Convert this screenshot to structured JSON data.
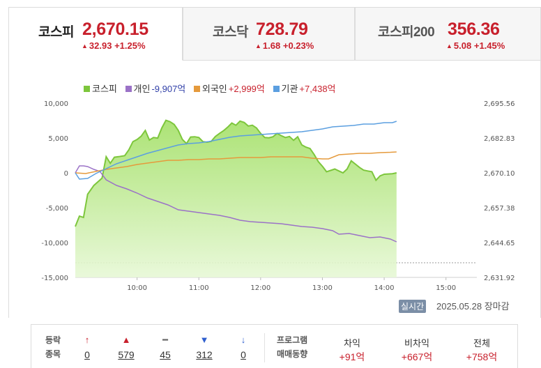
{
  "tabs": [
    {
      "name": "코스피",
      "value": "2,670.15",
      "change": "32.93",
      "pct": "+1.25%",
      "active": true
    },
    {
      "name": "코스닥",
      "value": "728.79",
      "change": "1.68",
      "pct": "+0.23%",
      "active": false
    },
    {
      "name": "코스피200",
      "value": "356.36",
      "change": "5.08",
      "pct": "+1.45%",
      "active": false
    }
  ],
  "legend": [
    {
      "name": "코스피",
      "value": "",
      "color": "#7dc63c",
      "value_color": "#333"
    },
    {
      "name": "개인",
      "value": "-9,907억",
      "color": "#9b72c7",
      "value_color": "#2f3ea7"
    },
    {
      "name": "외국인",
      "value": "+2,999억",
      "color": "#e59a3c",
      "value_color": "#c8202c"
    },
    {
      "name": "기관",
      "value": "+7,438억",
      "color": "#5b9fe0",
      "value_color": "#c8202c"
    }
  ],
  "chart_data": {
    "type": "line",
    "x_ticks": [
      "10:00",
      "11:00",
      "12:00",
      "13:00",
      "14:00",
      "15:00"
    ],
    "y_left_ticks": [
      "10,000",
      "5,000",
      "0",
      "-5,000",
      "-10,000",
      "-15,000"
    ],
    "y_right_ticks": [
      "2,695.56",
      "2,682.83",
      "2,670.10",
      "2,657.38",
      "2,644.65",
      "2,631.92"
    ],
    "y_left_range": [
      -15000,
      10000
    ],
    "y_right_range": [
      2631.92,
      2695.56
    ],
    "x_range_minutes": [
      540,
      930
    ],
    "series": [
      {
        "name": "코스피",
        "type": "area",
        "color": "#7dc63c",
        "points": [
          [
            540,
            2650.5
          ],
          [
            544,
            2654.3
          ],
          [
            548,
            2653.8
          ],
          [
            552,
            2662.3
          ],
          [
            558,
            2665.5
          ],
          [
            564,
            2667.5
          ],
          [
            566,
            2668.2
          ],
          [
            570,
            2676.0
          ],
          [
            574,
            2673.6
          ],
          [
            578,
            2675.8
          ],
          [
            582,
            2676.0
          ],
          [
            588,
            2676.4
          ],
          [
            592,
            2678.5
          ],
          [
            596,
            2681.5
          ],
          [
            600,
            2682.3
          ],
          [
            604,
            2683.5
          ],
          [
            608,
            2685.6
          ],
          [
            612,
            2682.1
          ],
          [
            616,
            2683.0
          ],
          [
            620,
            2682.8
          ],
          [
            624,
            2686.5
          ],
          [
            628,
            2689.3
          ],
          [
            632,
            2688.8
          ],
          [
            636,
            2687.8
          ],
          [
            640,
            2685.6
          ],
          [
            644,
            2682.3
          ],
          [
            648,
            2680.8
          ],
          [
            652,
            2683.2
          ],
          [
            656,
            2683.3
          ],
          [
            660,
            2683.0
          ],
          [
            664,
            2681.5
          ],
          [
            668,
            2681.3
          ],
          [
            672,
            2681.6
          ],
          [
            676,
            2683.4
          ],
          [
            680,
            2684.5
          ],
          [
            684,
            2685.5
          ],
          [
            688,
            2686.8
          ],
          [
            692,
            2688.3
          ],
          [
            696,
            2687.5
          ],
          [
            700,
            2689.0
          ],
          [
            704,
            2688.5
          ],
          [
            708,
            2687.2
          ],
          [
            712,
            2687.5
          ],
          [
            716,
            2686.5
          ],
          [
            720,
            2684.5
          ],
          [
            724,
            2683.0
          ],
          [
            728,
            2682.9
          ],
          [
            732,
            2683.3
          ],
          [
            736,
            2684.5
          ],
          [
            740,
            2683.7
          ],
          [
            744,
            2683.0
          ],
          [
            748,
            2683.4
          ],
          [
            752,
            2682.0
          ],
          [
            756,
            2683.3
          ],
          [
            760,
            2680.3
          ],
          [
            764,
            2679.5
          ],
          [
            768,
            2679.0
          ],
          [
            772,
            2676.8
          ],
          [
            776,
            2674.2
          ],
          [
            780,
            2672.5
          ],
          [
            784,
            2670.5
          ],
          [
            788,
            2671.0
          ],
          [
            792,
            2671.5
          ],
          [
            796,
            2670.8
          ],
          [
            800,
            2670.1
          ],
          [
            804,
            2671.5
          ],
          [
            808,
            2674.5
          ],
          [
            812,
            2673.3
          ],
          [
            816,
            2672.1
          ],
          [
            820,
            2671.1
          ],
          [
            824,
            2670.8
          ],
          [
            828,
            2670.5
          ],
          [
            832,
            2667.4
          ],
          [
            836,
            2669.0
          ],
          [
            840,
            2669.6
          ],
          [
            844,
            2669.7
          ],
          [
            848,
            2669.8
          ],
          [
            852,
            2670.1
          ]
        ]
      },
      {
        "name": "개인",
        "color": "#9b72c7",
        "points": [
          [
            540,
            0
          ],
          [
            544,
            1000
          ],
          [
            548,
            1000
          ],
          [
            552,
            900
          ],
          [
            558,
            500
          ],
          [
            564,
            200
          ],
          [
            570,
            -1000
          ],
          [
            580,
            -1800
          ],
          [
            590,
            -2300
          ],
          [
            600,
            -2900
          ],
          [
            610,
            -3600
          ],
          [
            620,
            -4100
          ],
          [
            630,
            -4600
          ],
          [
            640,
            -5300
          ],
          [
            650,
            -5500
          ],
          [
            660,
            -5700
          ],
          [
            670,
            -5900
          ],
          [
            680,
            -6100
          ],
          [
            690,
            -6400
          ],
          [
            700,
            -6800
          ],
          [
            710,
            -7000
          ],
          [
            720,
            -7100
          ],
          [
            730,
            -7200
          ],
          [
            740,
            -7300
          ],
          [
            750,
            -7500
          ],
          [
            760,
            -7700
          ],
          [
            770,
            -7800
          ],
          [
            780,
            -8000
          ],
          [
            790,
            -8300
          ],
          [
            796,
            -8800
          ],
          [
            806,
            -8700
          ],
          [
            816,
            -9000
          ],
          [
            826,
            -9300
          ],
          [
            836,
            -9200
          ],
          [
            846,
            -9500
          ],
          [
            852,
            -9900
          ]
        ]
      },
      {
        "name": "외국인",
        "color": "#e59a3c",
        "points": [
          [
            540,
            0
          ],
          [
            550,
            -100
          ],
          [
            560,
            200
          ],
          [
            570,
            500
          ],
          [
            580,
            700
          ],
          [
            590,
            900
          ],
          [
            600,
            1200
          ],
          [
            610,
            1400
          ],
          [
            620,
            1600
          ],
          [
            630,
            1800
          ],
          [
            640,
            1800
          ],
          [
            650,
            1900
          ],
          [
            660,
            1900
          ],
          [
            670,
            2000
          ],
          [
            680,
            2000
          ],
          [
            690,
            2100
          ],
          [
            700,
            2200
          ],
          [
            710,
            2200
          ],
          [
            720,
            2200
          ],
          [
            730,
            2300
          ],
          [
            740,
            2300
          ],
          [
            750,
            2300
          ],
          [
            760,
            2300
          ],
          [
            770,
            2100
          ],
          [
            780,
            2000
          ],
          [
            786,
            2000
          ],
          [
            796,
            2600
          ],
          [
            806,
            2700
          ],
          [
            816,
            2800
          ],
          [
            826,
            2800
          ],
          [
            836,
            2900
          ],
          [
            846,
            2950
          ],
          [
            852,
            3000
          ]
        ]
      },
      {
        "name": "기관",
        "color": "#5b9fe0",
        "points": [
          [
            540,
            0
          ],
          [
            544,
            -900
          ],
          [
            552,
            -800
          ],
          [
            560,
            -100
          ],
          [
            570,
            600
          ],
          [
            580,
            1300
          ],
          [
            590,
            1800
          ],
          [
            600,
            2300
          ],
          [
            610,
            2800
          ],
          [
            620,
            3200
          ],
          [
            630,
            3600
          ],
          [
            640,
            4000
          ],
          [
            650,
            4200
          ],
          [
            660,
            4300
          ],
          [
            670,
            4500
          ],
          [
            680,
            4800
          ],
          [
            690,
            5100
          ],
          [
            700,
            5300
          ],
          [
            710,
            5400
          ],
          [
            720,
            5500
          ],
          [
            730,
            5600
          ],
          [
            740,
            5700
          ],
          [
            750,
            5800
          ],
          [
            760,
            5900
          ],
          [
            770,
            6100
          ],
          [
            780,
            6300
          ],
          [
            790,
            6600
          ],
          [
            800,
            6700
          ],
          [
            810,
            6800
          ],
          [
            820,
            7000
          ],
          [
            830,
            7000
          ],
          [
            840,
            7200
          ],
          [
            848,
            7200
          ],
          [
            852,
            7400
          ]
        ]
      }
    ],
    "reference_line_left": -12900
  },
  "status": {
    "realtime_label": "실시간",
    "datetime": "2025.05.28",
    "market_state": "장마감"
  },
  "breadth": {
    "label_top": "등락",
    "label_bottom": "종목",
    "items": [
      {
        "symbol": "↑",
        "count": "0",
        "color": "#c8202c"
      },
      {
        "symbol": "▲",
        "count": "579",
        "color": "#c8202c"
      },
      {
        "symbol": "━",
        "count": "45",
        "color": "#666"
      },
      {
        "symbol": "▼",
        "count": "312",
        "color": "#2f5fcf"
      },
      {
        "symbol": "↓",
        "count": "0",
        "color": "#2f5fcf"
      }
    ]
  },
  "program": {
    "label_top": "프로그램",
    "label_bottom": "매매동향",
    "columns": [
      {
        "header": "차익",
        "value": "+91억"
      },
      {
        "header": "비차익",
        "value": "+667억"
      },
      {
        "header": "전체",
        "value": "+758억"
      }
    ]
  }
}
